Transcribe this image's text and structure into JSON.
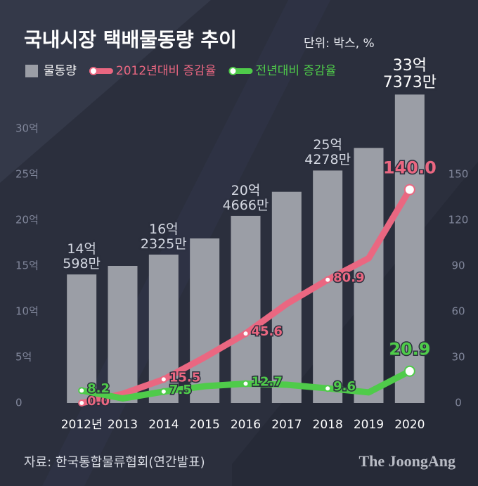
{
  "chart_data": {
    "type": "bar",
    "title": "국내시장 택배물동량 추이",
    "unit_note": "단위: 박스, %",
    "source": "자료: 한국통합물류협회(연간발표)",
    "logo": "The JoongAng",
    "categories": [
      "2012년",
      "2013",
      "2014",
      "2015",
      "2016",
      "2017",
      "2018",
      "2019",
      "2020"
    ],
    "ylim": [
      0,
      35
    ],
    "yticks": [
      0,
      {
        "value": 5,
        "label": "5억"
      },
      {
        "value": 10,
        "label": "10억"
      },
      {
        "value": 15,
        "label": "15억"
      },
      {
        "value": 20,
        "label": "20억"
      },
      {
        "value": 25,
        "label": "25억"
      },
      {
        "value": 30,
        "label": "30억"
      }
    ],
    "y2lim": [
      0,
      210
    ],
    "y2ticks": [
      0,
      30,
      60,
      90,
      120,
      150
    ],
    "series": [
      {
        "name": "물동량",
        "type": "bar",
        "color": "#9b9ea6",
        "values": [
          14.0598,
          15.0,
          16.2325,
          18.0,
          20.4666,
          23.1,
          25.4278,
          27.9,
          33.7373
        ],
        "value_labels": [
          "14억\n598만",
          null,
          "16억\n2325만",
          null,
          "20억\n4666만",
          null,
          "25억\n4278만",
          null,
          "33억\n7373만"
        ]
      },
      {
        "name": "2012년대비 증감율",
        "type": "line",
        "axis": "y2",
        "color": "#ea6781",
        "values": [
          0.0,
          6.0,
          15.5,
          30.0,
          45.6,
          65.0,
          80.9,
          95.0,
          140.0
        ],
        "value_labels": [
          "0.0",
          null,
          "15.5",
          null,
          "45.6",
          null,
          "80.9",
          null,
          "140.0"
        ]
      },
      {
        "name": "전년대비 증감율",
        "type": "line",
        "axis": "y2",
        "color": "#4fcb4a",
        "values": [
          8.2,
          3.0,
          7.5,
          11.0,
          12.7,
          12.0,
          9.6,
          7.0,
          20.9
        ],
        "value_labels": [
          "8.2",
          null,
          "7.5",
          null,
          "12.7",
          null,
          "9.6",
          null,
          "20.9"
        ]
      }
    ]
  }
}
